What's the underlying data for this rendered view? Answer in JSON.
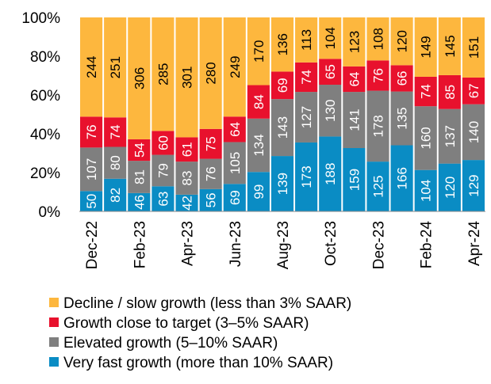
{
  "chart_data": {
    "type": "bar",
    "stacking": "percent",
    "categories": [
      "Dec-22",
      null,
      "Feb-23",
      null,
      "Apr-23",
      null,
      "Jun-23",
      null,
      "Aug-23",
      null,
      "Oct-23",
      null,
      "Dec-23",
      null,
      "Feb-24",
      null,
      "Apr-24"
    ],
    "series": [
      {
        "name": "Decline / slow growth (less than 3% SAAR)",
        "color": "#fdb73e",
        "label_color": "#000000",
        "values": [
          244,
          251,
          306,
          285,
          301,
          280,
          249,
          170,
          136,
          113,
          104,
          123,
          108,
          120,
          149,
          145,
          151
        ]
      },
      {
        "name": "Growth close to target (3–5% SAAR)",
        "color": "#e8112d",
        "label_color": "#ffffff",
        "values": [
          76,
          74,
          54,
          60,
          61,
          75,
          64,
          84,
          69,
          74,
          65,
          64,
          76,
          66,
          74,
          85,
          67
        ]
      },
      {
        "name": "Elevated growth (5–10% SAAR)",
        "color": "#7f7f7f",
        "label_color": "#ffffff",
        "values": [
          107,
          80,
          81,
          79,
          83,
          76,
          105,
          134,
          143,
          127,
          130,
          141,
          178,
          135,
          160,
          137,
          140
        ]
      },
      {
        "name": "Very fast  growth (more than 10% SAAR)",
        "color": "#0a8cc4",
        "label_color": "#ffffff",
        "values": [
          50,
          82,
          46,
          63,
          42,
          56,
          69,
          99,
          139,
          173,
          188,
          159,
          125,
          166,
          104,
          120,
          129
        ]
      }
    ],
    "ylim": [
      0,
      100
    ],
    "yticks": [
      {
        "value": 0,
        "label": "0%"
      },
      {
        "value": 20,
        "label": "20%"
      },
      {
        "value": 40,
        "label": "40%"
      },
      {
        "value": 60,
        "label": "60%"
      },
      {
        "value": 80,
        "label": "80%"
      },
      {
        "value": 100,
        "label": "100%"
      }
    ]
  }
}
